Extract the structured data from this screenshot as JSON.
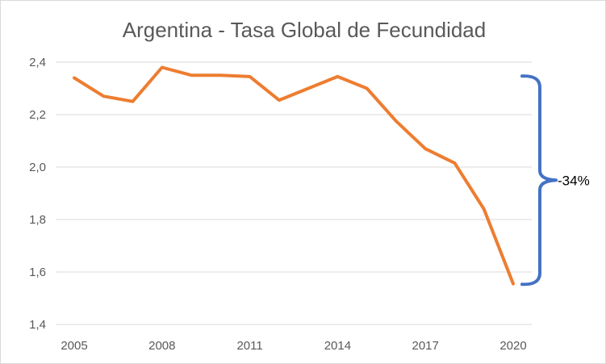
{
  "chart_data": {
    "type": "line",
    "title": "Argentina - Tasa Global de Fecundidad",
    "xlabel": "",
    "ylabel": "",
    "x": [
      2005,
      2006,
      2007,
      2008,
      2009,
      2010,
      2011,
      2012,
      2013,
      2014,
      2015,
      2016,
      2017,
      2018,
      2019,
      2020
    ],
    "series": [
      {
        "values": [
          2.34,
          2.27,
          2.25,
          2.38,
          2.35,
          2.35,
          2.345,
          2.255,
          2.3,
          2.345,
          2.3,
          2.175,
          2.07,
          2.015,
          1.84,
          1.555
        ]
      }
    ],
    "ylim": [
      1.4,
      2.4
    ],
    "yticks": [
      1.4,
      1.6,
      1.8,
      2.0,
      2.2,
      2.4
    ],
    "ytick_labels": [
      "1,4",
      "1,6",
      "1,8",
      "2,0",
      "2,2",
      "2,4"
    ],
    "xticks": [
      2005,
      2008,
      2011,
      2014,
      2017,
      2020
    ],
    "xtick_labels": [
      "2005",
      "2008",
      "2011",
      "2014",
      "2017",
      "2020"
    ],
    "grid": "horizontal",
    "legend": "none",
    "colors": {
      "line": "#ed7d31",
      "bracket": "#4472c4",
      "grid": "#d9d9d9",
      "text": "#595959"
    },
    "annotation": {
      "label": "-34%",
      "from_value": 2.35,
      "to_value": 1.55,
      "shape": "curly-brace-right"
    }
  }
}
